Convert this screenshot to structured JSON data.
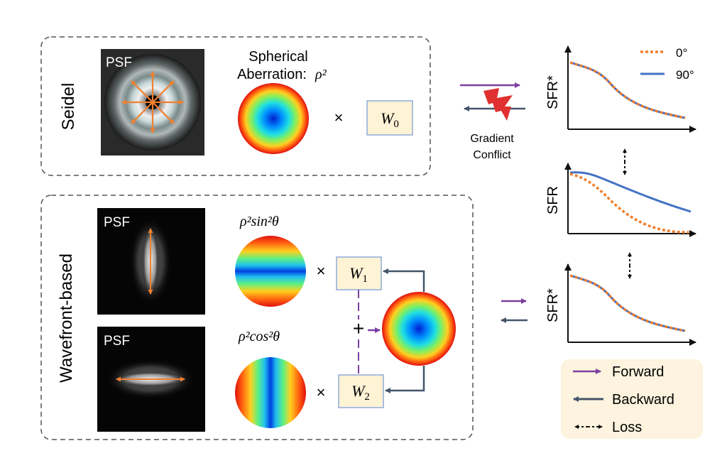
{
  "seidel": {
    "label": "Seidel",
    "psf_label": "PSF",
    "aberration_line1": "Spherical",
    "aberration_line2": "Aberration:",
    "aberration_math": "ρ²",
    "times": "×",
    "weight": {
      "symbol": "W",
      "sub": "0"
    }
  },
  "conflict": {
    "line1": "Gradient",
    "line2": "Conflict"
  },
  "wavefront": {
    "label": "Wavefront-based",
    "psf_top_label": "PSF",
    "psf_bottom_label": "PSF",
    "term_top": "ρ²sin²θ",
    "term_bottom": "ρ²cos²θ",
    "times": "×",
    "plus": "+",
    "weight_top": {
      "symbol": "W",
      "sub": "1"
    },
    "weight_bottom": {
      "symbol": "W",
      "sub": "2"
    }
  },
  "charts": {
    "top_ylabel": "SFR*",
    "mid_ylabel": "SFR",
    "bottom_ylabel": "SFR*",
    "legend_0deg": "0°",
    "legend_90deg": "90°"
  },
  "legend": {
    "forward": "Forward",
    "backward": "Backward",
    "loss": "Loss"
  },
  "colors": {
    "forward": "#7b3fa0",
    "backward": "#44546a",
    "curve_0deg": "#f08030",
    "curve_90deg": "#4472c4",
    "weight_box_fill": "#fff3d6",
    "weight_box_stroke": "#8faadc",
    "legend_bg": "#fdf3de",
    "conflict": "#e03030"
  }
}
